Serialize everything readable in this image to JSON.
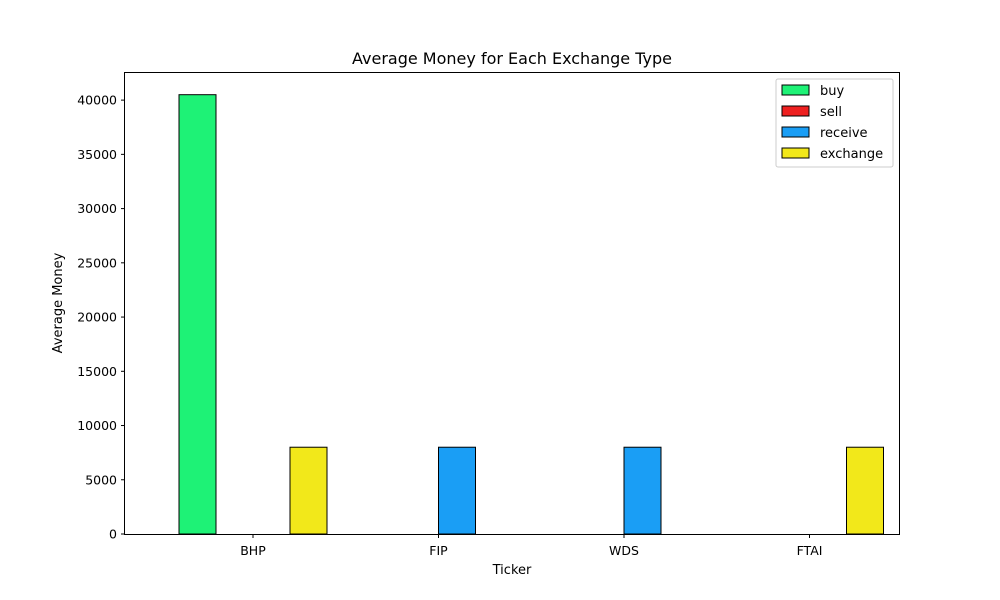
{
  "chart_data": {
    "type": "bar",
    "title": "Average Money for Each Exchange Type",
    "xlabel": "Ticker",
    "ylabel": "Average Money",
    "categories": [
      "BHP",
      "FIP",
      "WDS",
      "FTAI"
    ],
    "series": [
      {
        "name": "buy",
        "color": "#1ef276",
        "values": [
          40500,
          0,
          0,
          0
        ]
      },
      {
        "name": "sell",
        "color": "#ee2020",
        "values": [
          0,
          0,
          0,
          0
        ]
      },
      {
        "name": "receive",
        "color": "#1a9ef5",
        "values": [
          0,
          8000,
          8000,
          0
        ]
      },
      {
        "name": "exchange",
        "color": "#f2e81a",
        "values": [
          8000,
          0,
          0,
          8000
        ]
      }
    ],
    "ylim": [
      0,
      42500
    ],
    "yticks": [
      0,
      5000,
      10000,
      15000,
      20000,
      25000,
      30000,
      35000,
      40000
    ],
    "ytick_labels": [
      "0",
      "5000",
      "10000",
      "15000",
      "20000",
      "25000",
      "30000",
      "35000",
      "40000"
    ],
    "grid": false,
    "legend_position": "upper right"
  }
}
